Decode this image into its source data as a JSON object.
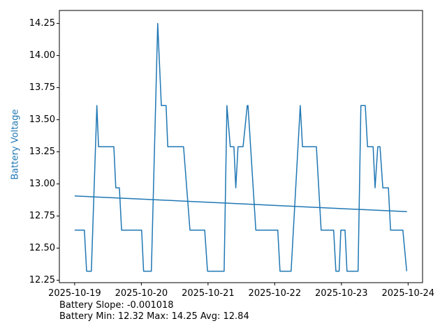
{
  "colors": {
    "line": "#1f77b4",
    "trend": "#1f77b4",
    "axis": "#000000",
    "ylabel": "#1f77b4",
    "background": "#ffffff"
  },
  "annotations": {
    "slope_line": "Battery Slope: -0.001018",
    "stats_line": "Battery Min: 12.32 Max: 14.25 Avg: 12.84"
  },
  "chart_data": {
    "type": "line",
    "title": "",
    "xlabel": "",
    "ylabel": "Battery Voltage",
    "x_unit": "hours since 2025-10-19 00:00",
    "grid": false,
    "legend": "none",
    "xlim_hours": [
      -5.5,
      125.2
    ],
    "ylim": [
      12.231,
      14.351
    ],
    "y_ticks": [
      {
        "value": 12.25,
        "label": "12.25"
      },
      {
        "value": 12.5,
        "label": "12.50"
      },
      {
        "value": 12.75,
        "label": "12.75"
      },
      {
        "value": 13.0,
        "label": "13.00"
      },
      {
        "value": 13.25,
        "label": "13.25"
      },
      {
        "value": 13.5,
        "label": "13.50"
      },
      {
        "value": 13.75,
        "label": "13.75"
      },
      {
        "value": 14.0,
        "label": "14.00"
      },
      {
        "value": 14.25,
        "label": "14.25"
      }
    ],
    "x_ticks": [
      {
        "hour": 0,
        "label": "2025-10-19"
      },
      {
        "hour": 24,
        "label": "2025-10-20"
      },
      {
        "hour": 48,
        "label": "2025-10-21"
      },
      {
        "hour": 72,
        "label": "2025-10-22"
      },
      {
        "hour": 96,
        "label": "2025-10-23"
      },
      {
        "hour": 120,
        "label": "2025-10-24"
      }
    ],
    "series": [
      {
        "name": "battery_voltage",
        "color": "#1f77b4",
        "width": 1.5,
        "points": [
          [
            0.0,
            12.64
          ],
          [
            3.5,
            12.64
          ],
          [
            4.3,
            12.32
          ],
          [
            6.0,
            12.32
          ],
          [
            8.0,
            13.61
          ],
          [
            8.6,
            13.29
          ],
          [
            14.1,
            13.29
          ],
          [
            14.8,
            12.97
          ],
          [
            16.1,
            12.97
          ],
          [
            16.9,
            12.64
          ],
          [
            24.1,
            12.64
          ],
          [
            24.8,
            12.32
          ],
          [
            27.6,
            12.32
          ],
          [
            29.9,
            14.25
          ],
          [
            31.2,
            13.61
          ],
          [
            32.9,
            13.61
          ],
          [
            33.5,
            13.29
          ],
          [
            39.2,
            13.29
          ],
          [
            41.5,
            12.64
          ],
          [
            46.8,
            12.64
          ],
          [
            47.8,
            12.32
          ],
          [
            53.8,
            12.32
          ],
          [
            54.8,
            13.61
          ],
          [
            56.0,
            13.29
          ],
          [
            57.3,
            13.29
          ],
          [
            58.0,
            12.97
          ],
          [
            58.8,
            13.29
          ],
          [
            60.6,
            13.29
          ],
          [
            62.1,
            13.61
          ],
          [
            62.4,
            13.61
          ],
          [
            65.2,
            12.64
          ],
          [
            73.1,
            12.64
          ],
          [
            73.9,
            12.32
          ],
          [
            77.9,
            12.32
          ],
          [
            81.2,
            13.61
          ],
          [
            82.0,
            13.29
          ],
          [
            87.0,
            13.29
          ],
          [
            88.7,
            12.64
          ],
          [
            93.2,
            12.64
          ],
          [
            94.0,
            12.32
          ],
          [
            95.2,
            12.32
          ],
          [
            95.8,
            12.64
          ],
          [
            97.3,
            12.64
          ],
          [
            98.0,
            12.32
          ],
          [
            102.0,
            12.32
          ],
          [
            103.0,
            13.61
          ],
          [
            104.6,
            13.61
          ],
          [
            105.4,
            13.29
          ],
          [
            107.4,
            13.29
          ],
          [
            108.1,
            12.97
          ],
          [
            109.1,
            13.29
          ],
          [
            109.9,
            13.29
          ],
          [
            110.9,
            12.97
          ],
          [
            112.9,
            12.97
          ],
          [
            113.7,
            12.64
          ],
          [
            118.1,
            12.64
          ],
          [
            119.5,
            12.32
          ]
        ]
      },
      {
        "name": "trend",
        "color": "#1f77b4",
        "width": 1.5,
        "points": [
          [
            0.0,
            12.906
          ],
          [
            119.6,
            12.784
          ]
        ]
      }
    ]
  }
}
